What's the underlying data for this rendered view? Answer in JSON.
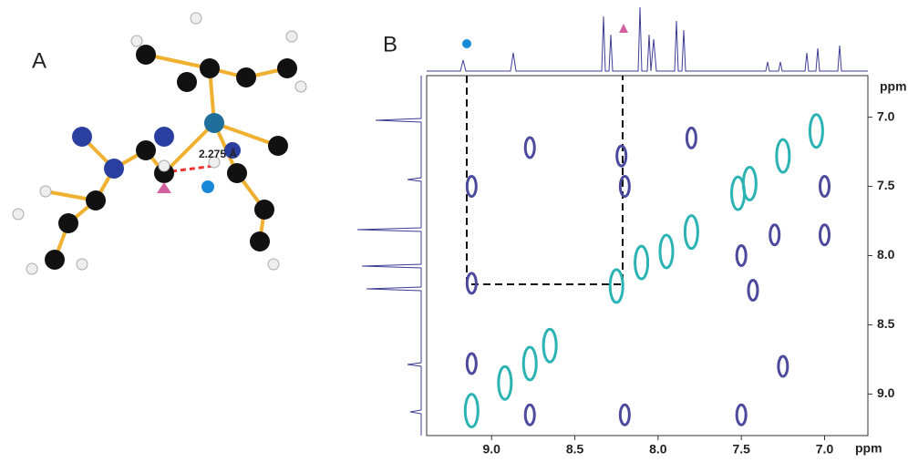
{
  "panel_a": {
    "label": "A",
    "distance_label": "2.275 Å"
  },
  "chart_data": {
    "type": "scatter",
    "title": "B",
    "xlabel": "ppm",
    "ylabel": "ppm",
    "xlim": [
      9.39,
      6.74
    ],
    "ylim": [
      6.7,
      9.3
    ],
    "xticks": [
      {
        "value": 9,
        "label": "9.0"
      },
      {
        "value": 8.5,
        "label": "8.5"
      },
      {
        "value": 8,
        "label": "8.0"
      },
      {
        "value": 7.5,
        "label": "7.5"
      },
      {
        "value": 7,
        "label": "7.0"
      }
    ],
    "yticks": [
      {
        "value": 7,
        "label": "7.0"
      },
      {
        "value": 7.5,
        "label": "7.5"
      },
      {
        "value": 8,
        "label": "8.0"
      },
      {
        "value": 8.5,
        "label": "8.5"
      },
      {
        "value": 9,
        "label": "9.0"
      }
    ],
    "series": [
      {
        "color": "#2bb3b3",
        "x": [
          9.12,
          8.92,
          8.77,
          8.65,
          8.25,
          8.1,
          7.95,
          7.8,
          7.52,
          7.45,
          7.25,
          7.05
        ],
        "values": [
          9.12,
          8.92,
          8.78,
          8.65,
          8.22,
          8.05,
          7.97,
          7.83,
          7.55,
          7.48,
          7.28,
          7.1
        ]
      },
      {
        "color": "#4b4a9c",
        "x": [
          9.12,
          9.12,
          9.12,
          8.77,
          8.77,
          8.22,
          8.2,
          8.2,
          7.8,
          7.5,
          7.5,
          7.43,
          7.3,
          7.25,
          7.0,
          7.0
        ],
        "values": [
          7.5,
          8.2,
          8.78,
          7.22,
          9.15,
          7.28,
          7.5,
          9.15,
          7.15,
          8.0,
          9.15,
          8.25,
          7.85,
          8.8,
          7.85,
          7.5
        ]
      }
    ]
  }
}
